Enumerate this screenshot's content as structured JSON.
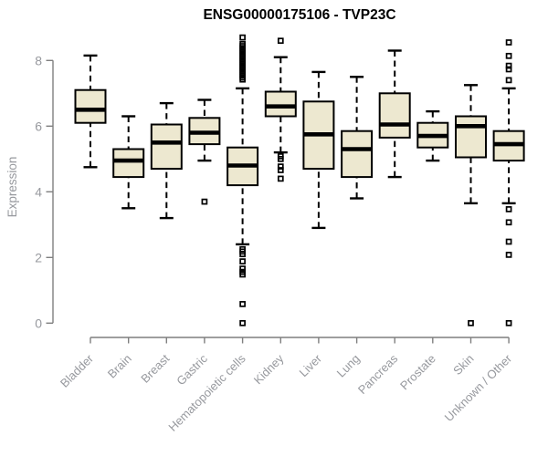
{
  "chart_data": {
    "type": "boxplot",
    "title": "ENSG00000175106 - TVP23C",
    "ylabel": "Expression",
    "xlabel": "",
    "yticks": [
      0,
      2,
      4,
      6,
      8
    ],
    "ylim": [
      -0.4,
      8.75
    ],
    "grid": false,
    "legend": null,
    "categories": [
      "Bladder",
      "Brain",
      "Breast",
      "Gastric",
      "Hematopoietic cells",
      "Kidney",
      "Liver",
      "Lung",
      "Pancreas",
      "Prostate",
      "Skin",
      "Unknown / Other"
    ],
    "boxes": [
      {
        "category": "Bladder",
        "whislo": 4.75,
        "q1": 6.1,
        "med": 6.5,
        "q3": 7.1,
        "whishi": 8.15,
        "fliers": []
      },
      {
        "category": "Brain",
        "whislo": 3.5,
        "q1": 4.45,
        "med": 4.95,
        "q3": 5.3,
        "whishi": 6.3,
        "fliers": []
      },
      {
        "category": "Breast",
        "whislo": 3.2,
        "q1": 4.7,
        "med": 5.5,
        "q3": 6.05,
        "whishi": 6.7,
        "fliers": []
      },
      {
        "category": "Gastric",
        "whislo": 4.95,
        "q1": 5.45,
        "med": 5.8,
        "q3": 6.25,
        "whishi": 6.8,
        "fliers": [
          3.7
        ]
      },
      {
        "category": "Hematopoietic cells",
        "whislo": 2.4,
        "q1": 4.2,
        "med": 4.8,
        "q3": 5.35,
        "whishi": 7.15,
        "fliers": [
          8.7,
          8.5,
          8.44,
          8.38,
          8.32,
          8.26,
          8.2,
          8.14,
          8.08,
          8.02,
          7.96,
          7.9,
          7.84,
          7.78,
          7.72,
          7.66,
          7.6,
          7.54,
          7.48,
          7.42,
          2.25,
          2.18,
          2.1,
          1.88,
          1.66,
          1.56,
          1.48,
          0.58,
          0
        ]
      },
      {
        "category": "Kidney",
        "whislo": 5.2,
        "q1": 6.3,
        "med": 6.6,
        "q3": 7.05,
        "whishi": 8.1,
        "fliers": [
          8.6,
          5.08,
          5.0,
          4.77,
          4.66,
          4.4
        ]
      },
      {
        "category": "Liver",
        "whislo": 2.9,
        "q1": 4.7,
        "med": 5.75,
        "q3": 6.75,
        "whishi": 7.65,
        "fliers": []
      },
      {
        "category": "Lung",
        "whislo": 3.8,
        "q1": 4.45,
        "med": 5.3,
        "q3": 5.85,
        "whishi": 7.5,
        "fliers": []
      },
      {
        "category": "Pancreas",
        "whislo": 4.45,
        "q1": 5.65,
        "med": 6.05,
        "q3": 7.0,
        "whishi": 8.3,
        "fliers": []
      },
      {
        "category": "Prostate",
        "whislo": 4.95,
        "q1": 5.35,
        "med": 5.7,
        "q3": 6.1,
        "whishi": 6.45,
        "fliers": []
      },
      {
        "category": "Skin",
        "whislo": 3.65,
        "q1": 5.05,
        "med": 6.0,
        "q3": 6.3,
        "whishi": 7.25,
        "fliers": [
          0
        ]
      },
      {
        "category": "Unknown / Other",
        "whislo": 3.65,
        "q1": 4.95,
        "med": 5.45,
        "q3": 5.85,
        "whishi": 7.15,
        "fliers": [
          8.55,
          8.14,
          7.84,
          7.73,
          7.4,
          3.47,
          3.07,
          2.48,
          2.08,
          0
        ]
      }
    ],
    "colors": {
      "box_fill": "#EDE8D0",
      "box_border": "#000000",
      "median": "#000000",
      "whisker": "#000000",
      "outlier": "#000000",
      "axis": "#7F7F7F",
      "tick_label": "#97999E",
      "title": "#000000",
      "background": "#FFFFFF"
    }
  }
}
